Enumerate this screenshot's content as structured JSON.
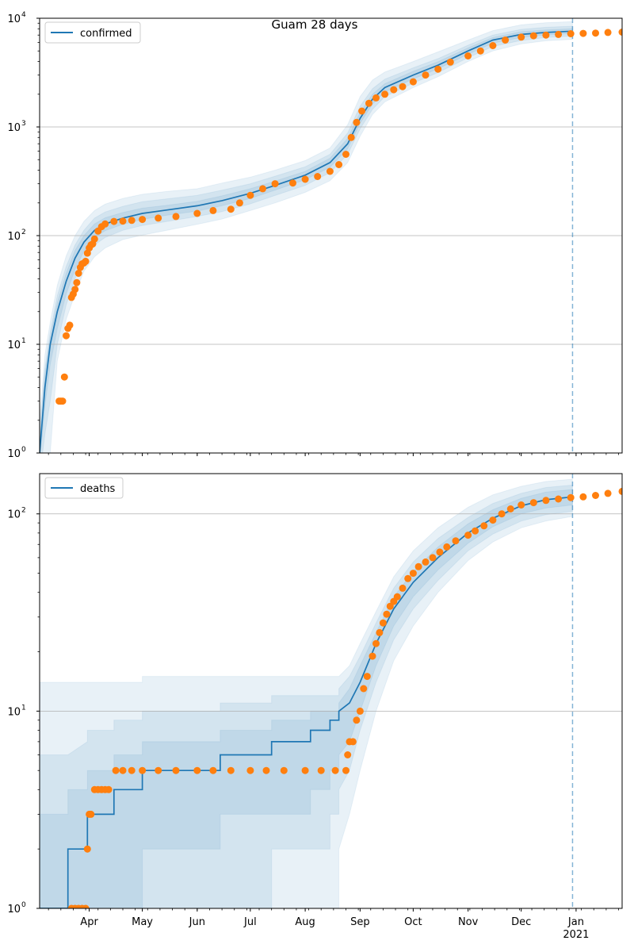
{
  "title": "Guam 28 days",
  "colors": {
    "model": "#1f77b4",
    "observed": "#ff7f0e",
    "band": "#1f77b4",
    "grid": "#b0b0b0",
    "forecast_line": "#1f77b4"
  },
  "months": [
    {
      "label": "Apr",
      "date": "2020-04-01"
    },
    {
      "label": "May",
      "date": "2020-05-01"
    },
    {
      "label": "Jun",
      "date": "2020-06-01"
    },
    {
      "label": "Jul",
      "date": "2020-07-01"
    },
    {
      "label": "Aug",
      "date": "2020-08-01"
    },
    {
      "label": "Sep",
      "date": "2020-09-01"
    },
    {
      "label": "Oct",
      "date": "2020-10-01"
    },
    {
      "label": "Nov",
      "date": "2020-11-01"
    },
    {
      "label": "Dec",
      "date": "2020-12-01"
    },
    {
      "label": "Jan",
      "date": "2021-01-01"
    }
  ],
  "year_label": "2021",
  "chart_data": [
    {
      "type": "line",
      "legend": "confirmed",
      "legend_loc": "upper left",
      "yscale": "log",
      "ylim": [
        1,
        10000
      ],
      "xlim": [
        "2020-03-04",
        "2021-01-27"
      ],
      "grid": "y-major",
      "forecast_start": "2020-12-30",
      "y_ticks": [
        {
          "value": 1,
          "base": "10",
          "exp": "0"
        },
        {
          "value": 10,
          "base": "10",
          "exp": "1"
        },
        {
          "value": 100,
          "base": "10",
          "exp": "2"
        },
        {
          "value": 1000,
          "base": "10",
          "exp": "3"
        },
        {
          "value": 10000,
          "base": "10",
          "exp": "4"
        }
      ],
      "model": {
        "x": [
          "2020-03-04",
          "2020-03-07",
          "2020-03-10",
          "2020-03-14",
          "2020-03-19",
          "2020-03-24",
          "2020-03-29",
          "2020-04-04",
          "2020-04-10",
          "2020-04-20",
          "2020-05-01",
          "2020-05-15",
          "2020-06-01",
          "2020-06-15",
          "2020-07-01",
          "2020-07-15",
          "2020-08-01",
          "2020-08-15",
          "2020-08-25",
          "2020-09-01",
          "2020-09-08",
          "2020-09-15",
          "2020-10-01",
          "2020-10-15",
          "2020-11-01",
          "2020-11-15",
          "2020-12-01",
          "2020-12-15",
          "2020-12-30"
        ],
        "y": [
          1,
          4,
          10,
          20,
          38,
          62,
          87,
          112,
          128,
          145,
          160,
          172,
          188,
          210,
          245,
          290,
          360,
          470,
          700,
          1200,
          1800,
          2300,
          3000,
          3700,
          5000,
          6300,
          7100,
          7400,
          7600
        ]
      },
      "bands": [
        {
          "level": "outer",
          "lower": [
            0.5,
            0.5,
            1,
            7,
            17,
            29,
            47,
            64,
            77,
            92,
            101,
            112,
            127,
            142,
            170,
            200,
            250,
            320,
            470,
            820,
            1300,
            1700,
            2300,
            2900,
            4000,
            5000,
            5800,
            6200,
            6400
          ],
          "upper": [
            2,
            8,
            16,
            35,
            65,
            100,
            135,
            170,
            195,
            220,
            240,
            255,
            270,
            305,
            345,
            400,
            490,
            640,
            1050,
            1900,
            2700,
            3200,
            4000,
            4900,
            6300,
            7700,
            8700,
            9100,
            9300
          ]
        },
        {
          "level": "middle",
          "lower": [
            0.6,
            1.5,
            3,
            10,
            23,
            40,
            60,
            82,
            96,
            112,
            124,
            135,
            150,
            166,
            196,
            234,
            290,
            380,
            560,
            960,
            1450,
            1900,
            2530,
            3160,
            4330,
            5500,
            6250,
            6650,
            6850
          ],
          "upper": [
            1.6,
            6,
            13,
            28,
            52,
            82,
            112,
            145,
            165,
            186,
            205,
            218,
            235,
            262,
            300,
            352,
            430,
            560,
            880,
            1550,
            2250,
            2750,
            3500,
            4250,
            5650,
            7000,
            7900,
            8250,
            8450
          ]
        },
        {
          "level": "inner",
          "lower": [
            0.8,
            2.7,
            6.5,
            14,
            29,
            49,
            72,
            96,
            111,
            127,
            141,
            154,
            168,
            188,
            220,
            262,
            327,
            425,
            630,
            1080,
            1620,
            2100,
            2760,
            3430,
            4660,
            5900,
            6670,
            7020,
            7220
          ],
          "upper": [
            1.3,
            5.3,
            11.5,
            24,
            45,
            73,
            100,
            128,
            146,
            163,
            179,
            190,
            207,
            232,
            270,
            318,
            390,
            515,
            785,
            1350,
            2000,
            2500,
            3250,
            3980,
            5330,
            6650,
            7520,
            7800,
            8000
          ]
        }
      ],
      "observed": {
        "x": [
          "2020-03-15",
          "2020-03-16",
          "2020-03-17",
          "2020-03-18",
          "2020-03-19",
          "2020-03-20",
          "2020-03-21",
          "2020-03-22",
          "2020-03-23",
          "2020-03-24",
          "2020-03-25",
          "2020-03-26",
          "2020-03-27",
          "2020-03-28",
          "2020-03-29",
          "2020-03-30",
          "2020-03-31",
          "2020-04-01",
          "2020-04-02",
          "2020-04-03",
          "2020-04-04",
          "2020-04-06",
          "2020-04-08",
          "2020-04-10",
          "2020-04-15",
          "2020-04-20",
          "2020-04-25",
          "2020-05-01",
          "2020-05-10",
          "2020-05-20",
          "2020-06-01",
          "2020-06-10",
          "2020-06-20",
          "2020-06-25",
          "2020-07-01",
          "2020-07-08",
          "2020-07-15",
          "2020-07-25",
          "2020-08-01",
          "2020-08-08",
          "2020-08-15",
          "2020-08-20",
          "2020-08-24",
          "2020-08-27",
          "2020-08-30",
          "2020-09-02",
          "2020-09-06",
          "2020-09-10",
          "2020-09-15",
          "2020-09-20",
          "2020-09-25",
          "2020-10-01",
          "2020-10-08",
          "2020-10-15",
          "2020-10-22",
          "2020-11-01",
          "2020-11-08",
          "2020-11-15",
          "2020-11-22",
          "2020-12-01",
          "2020-12-08",
          "2020-12-15",
          "2020-12-22",
          "2020-12-29",
          "2021-01-05",
          "2021-01-12",
          "2021-01-19",
          "2021-01-27"
        ],
        "y": [
          3,
          3,
          3,
          5,
          12,
          14,
          15,
          27,
          29,
          32,
          37,
          45,
          51,
          55,
          56,
          58,
          69,
          77,
          82,
          84,
          93,
          110,
          121,
          128,
          135,
          136,
          138,
          141,
          145,
          150,
          160,
          170,
          175,
          200,
          235,
          270,
          300,
          305,
          330,
          350,
          390,
          450,
          560,
          800,
          1100,
          1400,
          1650,
          1850,
          2000,
          2200,
          2350,
          2600,
          3000,
          3400,
          3950,
          4500,
          5000,
          5600,
          6300,
          6700,
          6900,
          7000,
          7100,
          7200,
          7250,
          7300,
          7400,
          7450
        ]
      }
    },
    {
      "type": "line",
      "legend": "deaths",
      "legend_loc": "upper left",
      "yscale": "log",
      "ylim": [
        1,
        160
      ],
      "xlim": [
        "2020-03-04",
        "2021-01-27"
      ],
      "grid": "y-major",
      "forecast_start": "2020-12-30",
      "y_ticks": [
        {
          "value": 1,
          "base": "10",
          "exp": "0"
        },
        {
          "value": 10,
          "base": "10",
          "exp": "1"
        },
        {
          "value": 100,
          "base": "10",
          "exp": "2"
        }
      ],
      "model": {
        "x": [
          "2020-03-04",
          "2020-03-20",
          "2020-03-20",
          "2020-03-31",
          "2020-03-31",
          "2020-04-15",
          "2020-04-15",
          "2020-05-01",
          "2020-05-01",
          "2020-06-14",
          "2020-06-14",
          "2020-07-13",
          "2020-07-13",
          "2020-08-04",
          "2020-08-04",
          "2020-08-15",
          "2020-08-15",
          "2020-08-20",
          "2020-08-20",
          "2020-08-26",
          "2020-09-01",
          "2020-09-10",
          "2020-09-20",
          "2020-10-01",
          "2020-10-15",
          "2020-11-01",
          "2020-11-15",
          "2020-12-01",
          "2020-12-15",
          "2020-12-30"
        ],
        "y": [
          1,
          1,
          2,
          2,
          3,
          3,
          4,
          4,
          5,
          5,
          6,
          6,
          7,
          7,
          8,
          8,
          9,
          9,
          10,
          11,
          14,
          22,
          33,
          45,
          60,
          80,
          95,
          110,
          118,
          122
        ]
      },
      "bands": [
        {
          "level": "outer",
          "lower": [
            1,
            1,
            1,
            1,
            1,
            1,
            1,
            1,
            1,
            1,
            1,
            1,
            1,
            1,
            1,
            1,
            1,
            1,
            2,
            3,
            5,
            10,
            18,
            27,
            40,
            58,
            72,
            85,
            92,
            97
          ],
          "upper": [
            14,
            14,
            14,
            14,
            14,
            14,
            14,
            14,
            15,
            15,
            15,
            15,
            15,
            15,
            15,
            15,
            15,
            15,
            15,
            17,
            22,
            32,
            48,
            65,
            85,
            108,
            125,
            138,
            146,
            150
          ]
        },
        {
          "level": "middle",
          "lower": [
            1,
            1,
            1,
            1,
            1,
            1,
            1,
            1,
            1,
            1,
            1,
            1,
            2,
            2,
            2,
            2,
            3,
            3,
            4,
            5,
            8,
            14,
            23,
            33,
            46,
            65,
            79,
            92,
            99,
            103
          ],
          "upper": [
            6,
            6,
            6,
            7,
            8,
            8,
            9,
            9,
            10,
            10,
            11,
            11,
            12,
            12,
            12,
            12,
            12,
            12,
            13,
            15,
            19,
            28,
            42,
            57,
            75,
            96,
            113,
            127,
            136,
            140
          ]
        },
        {
          "level": "inner",
          "lower": [
            1,
            1,
            1,
            1,
            1,
            1,
            1,
            1,
            2,
            2,
            3,
            3,
            3,
            3,
            4,
            4,
            5,
            5,
            6,
            7,
            10,
            17,
            27,
            38,
            52,
            71,
            86,
            100,
            107,
            111
          ],
          "upper": [
            3,
            3,
            4,
            4,
            5,
            5,
            6,
            6,
            7,
            7,
            8,
            8,
            9,
            9,
            10,
            10,
            10,
            10,
            11,
            13,
            17,
            25,
            38,
            51,
            68,
            89,
            105,
            120,
            129,
            133
          ]
        }
      ],
      "observed": {
        "x": [
          "2020-03-22",
          "2020-03-24",
          "2020-03-26",
          "2020-03-28",
          "2020-03-30",
          "2020-03-31",
          "2020-04-01",
          "2020-04-02",
          "2020-04-04",
          "2020-04-06",
          "2020-04-08",
          "2020-04-10",
          "2020-04-12",
          "2020-04-16",
          "2020-04-20",
          "2020-04-25",
          "2020-05-01",
          "2020-05-10",
          "2020-05-20",
          "2020-06-01",
          "2020-06-10",
          "2020-06-20",
          "2020-07-01",
          "2020-07-10",
          "2020-07-20",
          "2020-08-01",
          "2020-08-10",
          "2020-08-18",
          "2020-08-24",
          "2020-08-25",
          "2020-08-26",
          "2020-08-28",
          "2020-08-30",
          "2020-09-01",
          "2020-09-03",
          "2020-09-05",
          "2020-09-08",
          "2020-09-10",
          "2020-09-12",
          "2020-09-14",
          "2020-09-16",
          "2020-09-18",
          "2020-09-20",
          "2020-09-22",
          "2020-09-25",
          "2020-09-28",
          "2020-10-01",
          "2020-10-04",
          "2020-10-08",
          "2020-10-12",
          "2020-10-16",
          "2020-10-20",
          "2020-10-25",
          "2020-11-01",
          "2020-11-05",
          "2020-11-10",
          "2020-11-15",
          "2020-11-20",
          "2020-11-25",
          "2020-12-01",
          "2020-12-08",
          "2020-12-15",
          "2020-12-22",
          "2020-12-29",
          "2021-01-05",
          "2021-01-12",
          "2021-01-19",
          "2021-01-27"
        ],
        "y": [
          1,
          1,
          1,
          1,
          1,
          2,
          3,
          3,
          4,
          4,
          4,
          4,
          4,
          5,
          5,
          5,
          5,
          5,
          5,
          5,
          5,
          5,
          5,
          5,
          5,
          5,
          5,
          5,
          5,
          6,
          7,
          7,
          9,
          10,
          13,
          15,
          19,
          22,
          25,
          28,
          31,
          34,
          36,
          38,
          42,
          47,
          50,
          54,
          57,
          60,
          64,
          68,
          73,
          78,
          82,
          87,
          93,
          100,
          106,
          111,
          114,
          117,
          119,
          121,
          122,
          124,
          127,
          130
        ]
      }
    }
  ]
}
